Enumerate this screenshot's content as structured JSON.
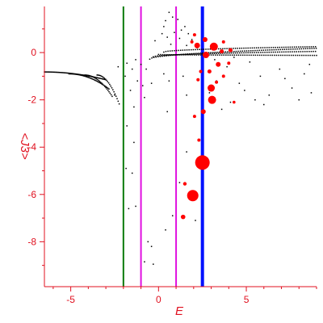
{
  "chart_data": {
    "type": "scatter",
    "title": "",
    "xlabel": "E",
    "ylabel": "<J3>",
    "xlim": [
      -6.5,
      9.0
    ],
    "ylim": [
      -9.9,
      1.95
    ],
    "xticks": [
      {
        "value": -5,
        "label": "-5"
      },
      {
        "value": 0,
        "label": "0"
      },
      {
        "value": 5,
        "label": "5"
      }
    ],
    "yticks": [
      {
        "value": 0,
        "label": "0"
      },
      {
        "value": -2,
        "label": "-2"
      },
      {
        "value": -4,
        "label": "-4"
      },
      {
        "value": -6,
        "label": "-6"
      },
      {
        "value": -8,
        "label": "-8"
      }
    ],
    "grid": false,
    "colors": {
      "axis": "#e0101f",
      "tick_label": "#e0101f",
      "points": "#000000",
      "highlight": "#ff0000",
      "line_green": "#0a7a0a",
      "line_magenta": "#e010e0",
      "line_blue": "#0010ff"
    },
    "vlines": [
      {
        "x": -2.0,
        "color": "#0a7a0a",
        "width": 2
      },
      {
        "x": -1.0,
        "color": "#e010e0",
        "width": 2
      },
      {
        "x": 1.0,
        "color": "#e010e0",
        "width": 2
      },
      {
        "x": 2.5,
        "color": "#0010ff",
        "width": 4
      }
    ],
    "bands": {
      "e_grid_range": [
        -6.5,
        9.0
      ],
      "e_step": 0.12,
      "upper": [
        {
          "x_start": -0.5,
          "y_at_start": -0.28,
          "y_at_end": 0.18
        },
        {
          "x_start": -0.3,
          "y_at_start": -0.18,
          "y_at_end": 0.05
        },
        {
          "x_start": 0.0,
          "y_at_start": -0.08,
          "y_at_end": -0.12
        },
        {
          "x_start": 0.3,
          "y_at_start": 0.02,
          "y_at_end": 0.25
        }
      ],
      "left_branches": [
        {
          "x_range": [
            -6.5,
            -3.0
          ],
          "y_range": [
            -0.82,
            -1.15
          ]
        },
        {
          "x_range": [
            -5.1,
            -2.8
          ],
          "y_range": [
            -0.9,
            -1.55
          ]
        },
        {
          "x_range": [
            -4.2,
            -2.6
          ],
          "y_range": [
            -0.95,
            -1.9
          ]
        },
        {
          "x_range": [
            -3.5,
            -2.2
          ],
          "y_range": [
            -0.95,
            -2.25
          ]
        }
      ]
    },
    "scattered_points": [
      [
        0.6,
        1.7
      ],
      [
        0.8,
        1.5
      ],
      [
        0.4,
        1.35
      ],
      [
        1.1,
        1.4
      ],
      [
        1.5,
        1.1
      ],
      [
        0.3,
        1.1
      ],
      [
        1.3,
        0.95
      ],
      [
        0.9,
        0.85
      ],
      [
        0.2,
        0.8
      ],
      [
        1.7,
        0.8
      ],
      [
        0.5,
        0.65
      ],
      [
        1.2,
        0.6
      ],
      [
        -0.2,
        0.5
      ],
      [
        1.9,
        0.55
      ],
      [
        0.7,
        0.35
      ],
      [
        1.6,
        0.3
      ],
      [
        2.2,
        0.2
      ],
      [
        -1.3,
        -0.3
      ],
      [
        -1.8,
        -0.45
      ],
      [
        -1.0,
        -0.5
      ],
      [
        -1.5,
        -0.7
      ],
      [
        -2.3,
        -0.6
      ],
      [
        -0.7,
        -0.7
      ],
      [
        -1.9,
        -1.0
      ],
      [
        -1.2,
        -1.2
      ],
      [
        -0.9,
        -1.4
      ],
      [
        -1.6,
        -1.6
      ],
      [
        -0.4,
        -1.3
      ],
      [
        0.3,
        -0.9
      ],
      [
        0.6,
        -1.2
      ],
      [
        -2.5,
        -1.8
      ],
      [
        -0.8,
        -1.9
      ],
      [
        -1.4,
        -2.3
      ],
      [
        0.5,
        -2.5
      ],
      [
        1.4,
        -1.0
      ],
      [
        1.6,
        -1.8
      ],
      [
        3.3,
        -1.2
      ],
      [
        3.9,
        -0.6
      ],
      [
        4.6,
        -1.3
      ],
      [
        5.2,
        -0.4
      ],
      [
        5.8,
        -1.0
      ],
      [
        6.3,
        -1.8
      ],
      [
        6.9,
        -0.7
      ],
      [
        7.6,
        -1.5
      ],
      [
        8.3,
        -0.9
      ],
      [
        8.7,
        -1.7
      ],
      [
        4.1,
        -2.1
      ],
      [
        5.5,
        -2.0
      ],
      [
        2.9,
        -1.7
      ],
      [
        3.6,
        -2.4
      ],
      [
        4.9,
        -1.6
      ],
      [
        6.0,
        -2.2
      ],
      [
        7.2,
        -1.1
      ],
      [
        8.0,
        -2.0
      ],
      [
        8.6,
        -0.5
      ],
      [
        3.2,
        -0.3
      ],
      [
        4.3,
        -0.2
      ],
      [
        -1.8,
        -3.1
      ],
      [
        -1.4,
        -3.8
      ],
      [
        -1.85,
        -4.9
      ],
      [
        -1.5,
        -5.1
      ],
      [
        -1.3,
        -6.5
      ],
      [
        -1.7,
        -6.6
      ],
      [
        -0.6,
        -8.0
      ],
      [
        -0.4,
        -8.2
      ],
      [
        -0.8,
        -8.85
      ],
      [
        -0.3,
        -8.95
      ],
      [
        0.4,
        -7.5
      ],
      [
        0.8,
        -6.9
      ],
      [
        1.2,
        -5.5
      ],
      [
        2.1,
        -7.1
      ],
      [
        1.6,
        -4.2
      ]
    ],
    "highlight_points": [
      {
        "x": 2.5,
        "y": -4.65,
        "size": 9
      },
      {
        "x": 1.95,
        "y": -6.05,
        "size": 7
      },
      {
        "x": 3.05,
        "y": -2.0,
        "size": 5
      },
      {
        "x": 3.0,
        "y": -1.5,
        "size": 4.5
      },
      {
        "x": 3.15,
        "y": 0.25,
        "size": 5
      },
      {
        "x": 2.7,
        "y": -0.1,
        "size": 4
      },
      {
        "x": 2.2,
        "y": 0.3,
        "size": 3.5
      },
      {
        "x": 2.65,
        "y": 0.55,
        "size": 3
      },
      {
        "x": 2.55,
        "y": -2.5,
        "size": 3
      },
      {
        "x": 3.4,
        "y": -0.5,
        "size": 3
      },
      {
        "x": 2.9,
        "y": -0.8,
        "size": 2.5
      },
      {
        "x": 3.6,
        "y": 0.05,
        "size": 2.5
      },
      {
        "x": 4.1,
        "y": 0.1,
        "size": 2.5
      },
      {
        "x": 3.7,
        "y": -1.0,
        "size": 2
      },
      {
        "x": 3.3,
        "y": -1.25,
        "size": 2
      },
      {
        "x": 4.0,
        "y": -0.45,
        "size": 2
      },
      {
        "x": 2.4,
        "y": -0.8,
        "size": 2
      },
      {
        "x": 2.05,
        "y": -2.7,
        "size": 2
      },
      {
        "x": 1.5,
        "y": -5.55,
        "size": 2.2
      },
      {
        "x": 1.4,
        "y": -6.95,
        "size": 2.8
      },
      {
        "x": 2.3,
        "y": -3.7,
        "size": 2
      },
      {
        "x": 2.05,
        "y": 0.75,
        "size": 2
      },
      {
        "x": 1.9,
        "y": 0.45,
        "size": 2
      },
      {
        "x": 3.7,
        "y": 0.45,
        "size": 2
      },
      {
        "x": 2.25,
        "y": -1.15,
        "size": 2
      },
      {
        "x": 4.3,
        "y": -2.1,
        "size": 1.8
      }
    ]
  }
}
